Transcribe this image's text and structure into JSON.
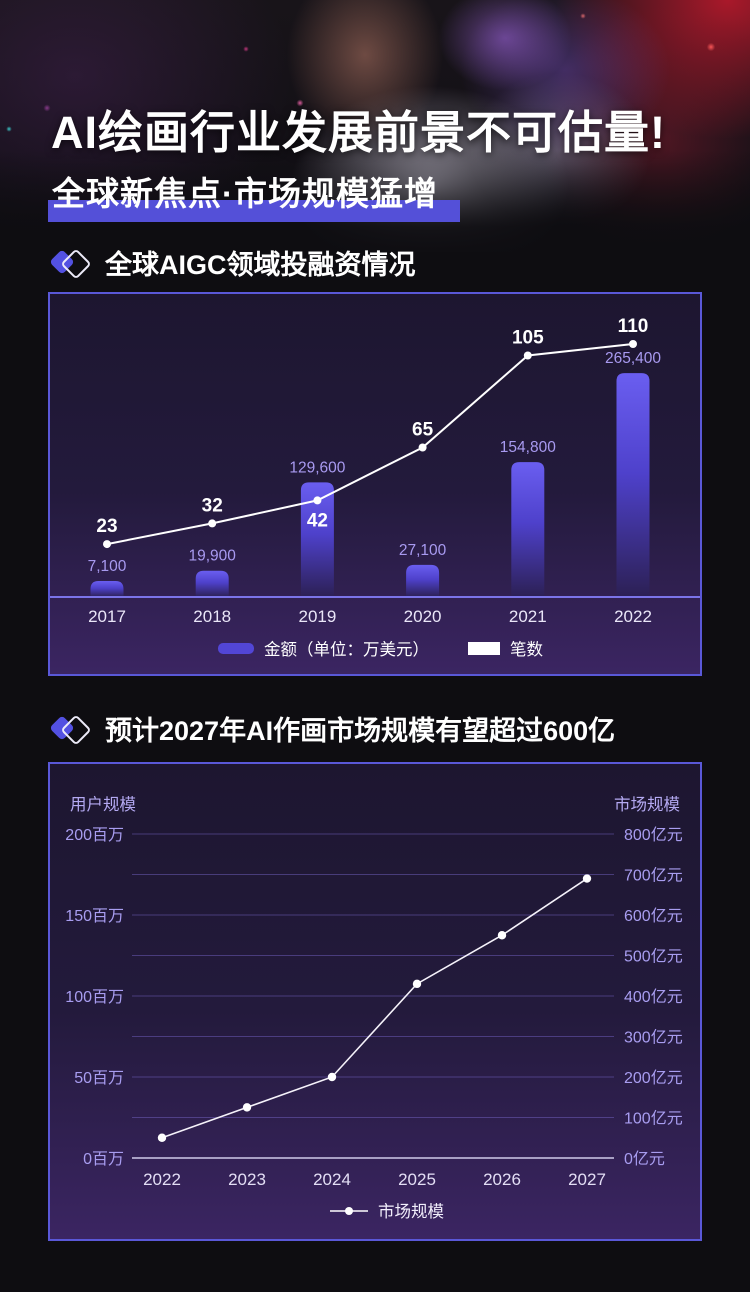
{
  "page": {
    "title": "AI绘画行业发展前景不可估量!",
    "subtitle": "全球新焦点·市场规模猛增",
    "hero_image": "hooded-figure-with-neon-bokeh"
  },
  "sections": [
    {
      "icon": "diamond-icon",
      "title": "全球AIGC领域投融资情况"
    },
    {
      "icon": "diamond-icon",
      "title": "预计2027年AI作画市场规模有望超过600亿"
    }
  ],
  "colors": {
    "accent_highlight": "#5450d8",
    "panel_border": "#5a58d8",
    "bar_gradient_top": "#6a5ef0",
    "bar_gradient_bottom": "#2c2054",
    "axis_line": "#7b74e8",
    "value_label": "#a89af0",
    "tick_label": "#a89df0",
    "grid_line": "#7a68cf",
    "series_line": "#ffffff"
  },
  "chart_data": [
    {
      "type": "bar",
      "title": "全球AIGC领域投融资情况",
      "categories": [
        "2017",
        "2018",
        "2019",
        "2020",
        "2021",
        "2022"
      ],
      "series": [
        {
          "name": "金额（单位：万美元）",
          "type": "bar",
          "values": [
            7100,
            19900,
            129600,
            27100,
            154800,
            265400
          ]
        },
        {
          "name": "笔数",
          "type": "line",
          "values": [
            23,
            32,
            42,
            65,
            105,
            110
          ]
        }
      ],
      "legend": [
        "金额（单位：万美元）",
        "笔数"
      ],
      "legend_position": "bottom",
      "grid": false,
      "xlabel": "",
      "ylabel": ""
    },
    {
      "type": "line",
      "title": "预计2027年AI作画市场规模有望超过600亿",
      "categories": [
        "2022",
        "2023",
        "2024",
        "2025",
        "2026",
        "2027"
      ],
      "series": [
        {
          "name": "市场规模",
          "type": "line",
          "values": [
            50,
            125,
            200,
            430,
            550,
            690
          ],
          "axis": "right"
        }
      ],
      "left_axis": {
        "title": "用户规模",
        "unit": "百万",
        "ticks": [
          "200百万",
          "150百万",
          "100百万",
          "50百万",
          "0百万"
        ],
        "range": [
          0,
          200
        ]
      },
      "right_axis": {
        "title": "市场规模",
        "unit": "亿元",
        "ticks": [
          "800亿元",
          "700亿元",
          "600亿元",
          "500亿元",
          "400亿元",
          "300亿元",
          "200亿元",
          "100亿元",
          "0亿元"
        ],
        "range": [
          0,
          800
        ]
      },
      "legend": [
        "市场规模"
      ],
      "legend_position": "bottom",
      "grid": true
    }
  ]
}
